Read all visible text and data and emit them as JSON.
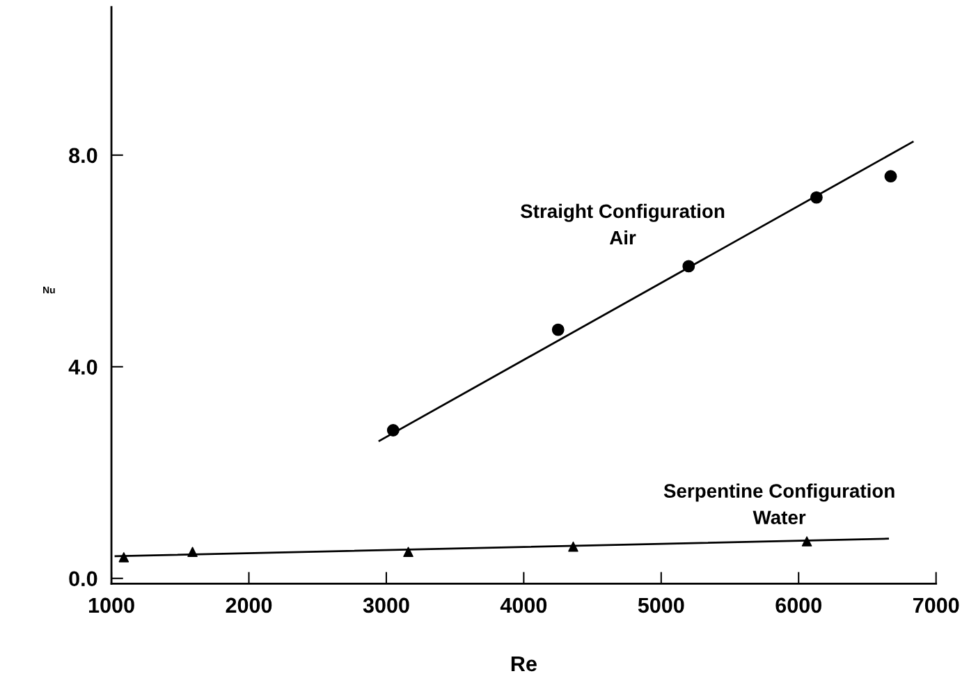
{
  "chart_data": {
    "type": "scatter",
    "xlabel": "Re",
    "ylabel": "Nu",
    "xlim": [
      1000,
      7000
    ],
    "ylim": [
      -0.1,
      10.8
    ],
    "xticks": [
      1000,
      2000,
      3000,
      4000,
      5000,
      6000,
      7000
    ],
    "yticks": [
      {
        "value": 0,
        "label": "0.0"
      },
      {
        "value": 4,
        "label": "4.0"
      },
      {
        "value": 8,
        "label": "8.0"
      }
    ],
    "grid": false,
    "legend": false,
    "series": [
      {
        "name": "Straight Configuration\nAir",
        "color": "#000000",
        "marker": "circle",
        "x": [
          3050,
          4250,
          5200,
          6130,
          6670
        ],
        "values": [
          2.8,
          4.7,
          5.9,
          7.2,
          7.6
        ]
      },
      {
        "type": "line",
        "color": "#000000",
        "marker": "none",
        "x": [
          2950,
          6830
        ],
        "values": [
          2.6,
          8.25
        ]
      },
      {
        "name": "Serpentine Configuration\nWater",
        "color": "#000000",
        "marker": "triangle",
        "x": [
          1090,
          1590,
          3160,
          4360,
          6060
        ],
        "values": [
          0.4,
          0.5,
          0.5,
          0.6,
          0.7
        ]
      },
      {
        "type": "line",
        "color": "#000000",
        "marker": "none",
        "x": [
          1030,
          6650
        ],
        "values": [
          0.42,
          0.75
        ]
      }
    ]
  }
}
